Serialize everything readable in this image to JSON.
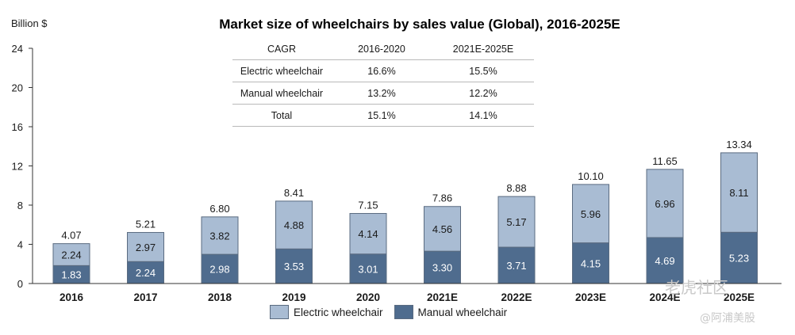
{
  "chart_data": {
    "type": "bar",
    "stacked": true,
    "title": "Market size of wheelchairs by sales value (Global), 2016-2025E",
    "ylabel": "Billion $",
    "xlabel": "",
    "ylim": [
      0,
      24
    ],
    "yticks": [
      0,
      4,
      8,
      12,
      16,
      20,
      24
    ],
    "categories": [
      "2016",
      "2017",
      "2018",
      "2019",
      "2020",
      "2021E",
      "2022E",
      "2023E",
      "2024E",
      "2025E"
    ],
    "series": [
      {
        "name": "Manual wheelchair",
        "color": "#4f6c8e",
        "values": [
          1.83,
          2.24,
          2.98,
          3.53,
          3.01,
          3.3,
          3.71,
          4.15,
          4.69,
          5.23
        ]
      },
      {
        "name": "Electric wheelchair",
        "color": "#a9bcd3",
        "values": [
          2.24,
          2.97,
          3.82,
          4.88,
          4.14,
          4.56,
          5.17,
          5.96,
          6.96,
          8.11
        ]
      }
    ],
    "totals": [
      4.07,
      5.21,
      6.8,
      8.41,
      7.15,
      7.86,
      8.88,
      10.1,
      11.65,
      13.34
    ],
    "totals_labels": [
      "4.07",
      "5.21",
      "6.80",
      "8.41",
      "7.15",
      "7.86",
      "8.88",
      "10.10",
      "11.65",
      "13.34"
    ],
    "manual_labels": [
      "1.83",
      "2.24",
      "2.98",
      "3.53",
      "3.01",
      "3.30",
      "3.71",
      "4.15",
      "4.69",
      "5.23"
    ],
    "electric_labels": [
      "2.24",
      "2.97",
      "3.82",
      "4.88",
      "4.14",
      "4.56",
      "5.17",
      "5.96",
      "6.96",
      "8.11"
    ],
    "legend": {
      "placement": "bottom",
      "entries": [
        "Electric wheelchair",
        "Manual wheelchair"
      ]
    },
    "grid": false
  },
  "cagr_table": {
    "header": [
      "CAGR",
      "2016-2020",
      "2021E-2025E"
    ],
    "rows": [
      [
        "Electric wheelchair",
        "16.6%",
        "15.5%"
      ],
      [
        "Manual wheelchair",
        "13.2%",
        "12.2%"
      ],
      [
        "Total",
        "15.1%",
        "14.1%"
      ]
    ]
  },
  "watermarks": {
    "wm1": "老虎社区",
    "wm2": "@阿浦美股"
  },
  "colors": {
    "manual": "#4f6c8e",
    "electric": "#a9bcd3",
    "edge": "#5a6b80",
    "axis": "#333333"
  }
}
